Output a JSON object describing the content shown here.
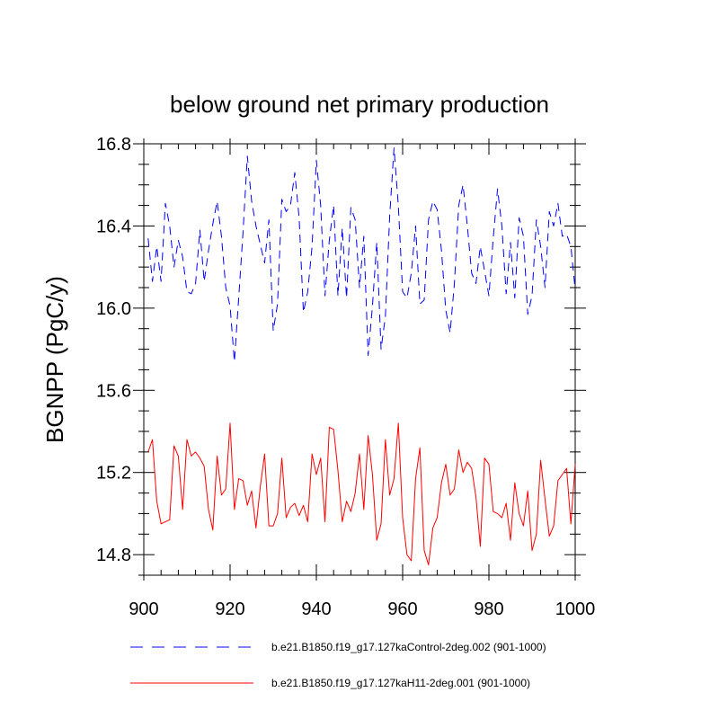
{
  "chart_data": {
    "type": "line",
    "title": "below ground net primary production",
    "xlabel": "",
    "ylabel": "BGNPP  (PgC/y)",
    "xlim": [
      900,
      1000
    ],
    "ylim": [
      14.7,
      16.8
    ],
    "xticks": [
      900,
      920,
      940,
      960,
      980,
      1000
    ],
    "xtick_labels": [
      "900",
      "920",
      "940",
      "960",
      "980",
      "1000"
    ],
    "yticks": [
      14.8,
      15.2,
      15.6,
      16.0,
      16.4,
      16.8
    ],
    "ytick_labels": [
      "14.8",
      "15.2",
      "15.6",
      "16.0",
      "16.4",
      "16.8"
    ],
    "x": [
      901,
      902,
      903,
      904,
      905,
      906,
      907,
      908,
      909,
      910,
      911,
      912,
      913,
      914,
      915,
      916,
      917,
      918,
      919,
      920,
      921,
      922,
      923,
      924,
      925,
      926,
      927,
      928,
      929,
      930,
      931,
      932,
      933,
      934,
      935,
      936,
      937,
      938,
      939,
      940,
      941,
      942,
      943,
      944,
      945,
      946,
      947,
      948,
      949,
      950,
      951,
      952,
      953,
      954,
      955,
      956,
      957,
      958,
      959,
      960,
      961,
      962,
      963,
      964,
      965,
      966,
      967,
      968,
      969,
      970,
      971,
      972,
      973,
      974,
      975,
      976,
      977,
      978,
      979,
      980,
      981,
      982,
      983,
      984,
      985,
      986,
      987,
      988,
      989,
      990,
      991,
      992,
      993,
      994,
      995,
      996,
      997,
      998,
      999,
      1000
    ],
    "series": [
      {
        "name": "b.e21.B1850.f19_g17.127kaControl-2deg.002 (901-1000)",
        "color": "#0000ff",
        "style": "dashed",
        "values": [
          16.34,
          16.13,
          16.3,
          16.13,
          16.51,
          16.4,
          16.2,
          16.33,
          16.25,
          16.08,
          16.07,
          16.12,
          16.38,
          16.13,
          16.28,
          16.41,
          16.52,
          16.35,
          16.1,
          16.01,
          15.74,
          16.05,
          16.37,
          16.74,
          16.52,
          16.4,
          16.31,
          16.22,
          16.43,
          15.89,
          16.02,
          16.53,
          16.47,
          16.5,
          16.66,
          16.44,
          15.98,
          16.08,
          16.3,
          16.72,
          16.5,
          16.06,
          16.33,
          16.5,
          16.06,
          16.39,
          16.05,
          16.49,
          16.43,
          16.1,
          16.35,
          15.77,
          16.01,
          16.32,
          15.8,
          15.96,
          16.45,
          16.78,
          16.5,
          16.08,
          16.05,
          16.17,
          16.4,
          16.02,
          16.04,
          16.43,
          16.52,
          16.48,
          16.28,
          15.99,
          15.88,
          16.12,
          16.5,
          16.6,
          16.4,
          16.17,
          16.12,
          16.3,
          16.18,
          16.06,
          16.34,
          16.58,
          16.4,
          16.07,
          16.32,
          16.05,
          16.44,
          16.35,
          15.97,
          16.06,
          16.43,
          16.3,
          16.1,
          16.47,
          16.4,
          16.51,
          16.35,
          16.36,
          16.3,
          16.09
        ]
      },
      {
        "name": "b.e21.B1850.f19_g17.127kaH11-2deg.001 (901-1000)",
        "color": "#ff0000",
        "style": "solid",
        "values": [
          15.3,
          15.36,
          15.06,
          14.95,
          14.96,
          14.97,
          15.33,
          15.28,
          15.02,
          15.36,
          15.28,
          15.3,
          15.27,
          15.23,
          15.02,
          14.92,
          15.28,
          15.09,
          15.12,
          15.44,
          15.02,
          15.17,
          15.16,
          15.04,
          15.11,
          14.93,
          15.13,
          15.29,
          14.94,
          14.94,
          15.0,
          15.27,
          14.98,
          15.03,
          15.05,
          14.99,
          15.04,
          14.96,
          15.29,
          15.19,
          15.27,
          14.96,
          15.42,
          15.41,
          15.21,
          14.96,
          15.06,
          15.01,
          15.1,
          15.29,
          15.02,
          15.38,
          15.19,
          14.87,
          14.95,
          15.36,
          15.09,
          15.17,
          15.44,
          14.98,
          14.8,
          14.77,
          15.17,
          15.32,
          14.82,
          14.75,
          14.93,
          14.98,
          15.15,
          15.24,
          15.09,
          15.12,
          15.31,
          15.2,
          15.25,
          15.22,
          15.08,
          14.84,
          15.27,
          15.24,
          15.01,
          15.0,
          14.98,
          15.05,
          14.87,
          15.15,
          15.0,
          14.94,
          15.11,
          14.82,
          14.9,
          15.26,
          15.07,
          14.89,
          14.94,
          15.16,
          15.19,
          15.22,
          14.95,
          15.24
        ]
      }
    ],
    "legend": [
      {
        "label": "b.e21.B1850.f19_g17.127kaControl-2deg.002 (901-1000)",
        "color": "#0000ff",
        "style": "dashed"
      },
      {
        "label": "b.e21.B1850.f19_g17.127kaH11-2deg.001 (901-1000)",
        "color": "#ff0000",
        "style": "solid"
      }
    ],
    "legend_position": "bottom",
    "grid": false
  }
}
